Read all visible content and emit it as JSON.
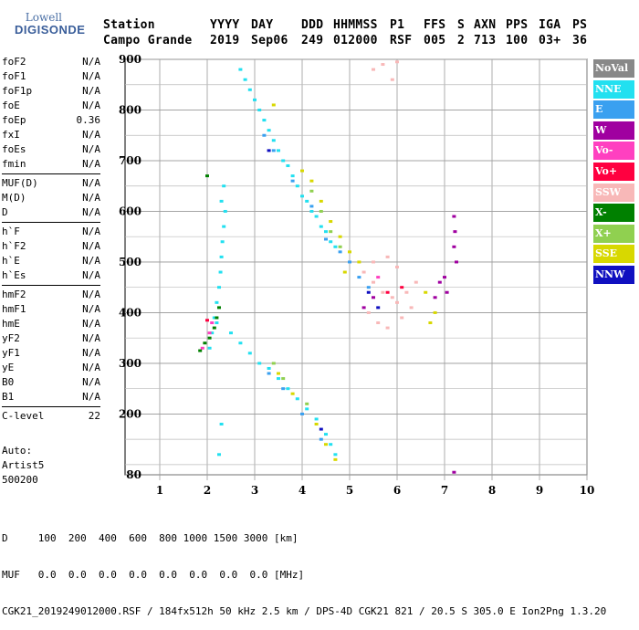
{
  "logo": {
    "line1": "Lowell",
    "line2": "DIGISONDE"
  },
  "header": {
    "row1": [
      {
        "key": "station_label",
        "text": "Station"
      },
      {
        "key": "yyyy_label",
        "text": "YYYY"
      },
      {
        "key": "day_label",
        "text": "DAY"
      },
      {
        "key": "ddd_label",
        "text": "DDD"
      },
      {
        "key": "hhmmss_label",
        "text": "HHMMSS"
      },
      {
        "key": "p1_label",
        "text": "P1"
      },
      {
        "key": "ffs_label",
        "text": "FFS"
      },
      {
        "key": "s_label",
        "text": "S"
      },
      {
        "key": "axn_label",
        "text": "AXN"
      },
      {
        "key": "pps_label",
        "text": "PPS"
      },
      {
        "key": "iga_label",
        "text": "IGA"
      },
      {
        "key": "ps_label",
        "text": "PS"
      }
    ],
    "row2": [
      {
        "key": "station",
        "text": "Campo Grande"
      },
      {
        "key": "yyyy",
        "text": "2019"
      },
      {
        "key": "day",
        "text": "Sep06"
      },
      {
        "key": "ddd",
        "text": "249"
      },
      {
        "key": "hhmmss",
        "text": "012000"
      },
      {
        "key": "p1",
        "text": "RSF"
      },
      {
        "key": "ffs",
        "text": "005"
      },
      {
        "key": "s",
        "text": "2"
      },
      {
        "key": "axn",
        "text": "713"
      },
      {
        "key": "pps",
        "text": "100"
      },
      {
        "key": "iga",
        "text": "03+"
      },
      {
        "key": "ps",
        "text": "36"
      }
    ]
  },
  "params": [
    {
      "group": [
        {
          "name": "foF2",
          "value": "N/A"
        },
        {
          "name": "foF1",
          "value": "N/A"
        },
        {
          "name": "foF1p",
          "value": "N/A"
        },
        {
          "name": "foE",
          "value": "N/A"
        },
        {
          "name": "foEp",
          "value": "0.36"
        },
        {
          "name": "fxI",
          "value": "N/A"
        },
        {
          "name": "foEs",
          "value": "N/A"
        },
        {
          "name": "fmin",
          "value": "N/A"
        }
      ]
    },
    {
      "group": [
        {
          "name": "MUF(D)",
          "value": "N/A"
        },
        {
          "name": "M(D)",
          "value": "N/A"
        },
        {
          "name": "D",
          "value": "N/A"
        }
      ]
    },
    {
      "group": [
        {
          "name": "h`F",
          "value": "N/A"
        },
        {
          "name": "h`F2",
          "value": "N/A"
        },
        {
          "name": "h`E",
          "value": "N/A"
        },
        {
          "name": "h`Es",
          "value": "N/A"
        }
      ]
    },
    {
      "group": [
        {
          "name": "hmF2",
          "value": "N/A"
        },
        {
          "name": "hmF1",
          "value": "N/A"
        },
        {
          "name": "hmE",
          "value": "N/A"
        },
        {
          "name": "yF2",
          "value": "N/A"
        },
        {
          "name": "yF1",
          "value": "N/A"
        },
        {
          "name": "yE",
          "value": "N/A"
        },
        {
          "name": "B0",
          "value": "N/A"
        },
        {
          "name": "B1",
          "value": "N/A"
        }
      ]
    },
    {
      "group": [
        {
          "name": "C-level",
          "value": "22"
        }
      ]
    }
  ],
  "auto": {
    "line1": "Auto:",
    "line2": "Artist5",
    "line3": "500200"
  },
  "legend": [
    {
      "label": "NoVal",
      "color": "#888888"
    },
    {
      "label": "NNE",
      "color": "#22e0f0"
    },
    {
      "label": "E",
      "color": "#3aa0f0"
    },
    {
      "label": "W",
      "color": "#a000a0"
    },
    {
      "label": "Vo-",
      "color": "#ff40c0"
    },
    {
      "label": "Vo+",
      "color": "#ff0040"
    },
    {
      "label": "SSW",
      "color": "#f8b8b8"
    },
    {
      "label": "X-",
      "color": "#008000"
    },
    {
      "label": "X+",
      "color": "#90d050"
    },
    {
      "label": "SSE",
      "color": "#d8d800"
    },
    {
      "label": "NNW",
      "color": "#1010c0"
    }
  ],
  "footer": {
    "d_row": "D     100  200  400  600  800 1000 1500 3000 [km]",
    "muf_row": "MUF   0.0  0.0  0.0  0.0  0.0  0.0  0.0  0.0 [MHz]",
    "info": "CGK21_2019249012000.RSF / 184fx512h 50 kHz 2.5 km / DPS-4D CGK21 821 / 20.5 S 305.0 E Ion2Png 1.3.20"
  },
  "chart_data": {
    "type": "scatter",
    "xlabel": "",
    "ylabel": "",
    "xlim": [
      1,
      10
    ],
    "ylim": [
      80,
      900
    ],
    "x_ticks": [
      1,
      2,
      3,
      4,
      5,
      6,
      7,
      8,
      9,
      10
    ],
    "y_ticks": [
      80,
      200,
      300,
      400,
      500,
      600,
      700,
      800,
      900
    ],
    "grid": true,
    "legend_position": "right",
    "traces": [
      {
        "name": "NNE",
        "color": "#22e0f0",
        "points": [
          [
            2.05,
            330
          ],
          [
            2.1,
            360
          ],
          [
            2.15,
            390
          ],
          [
            2.2,
            420
          ],
          [
            2.25,
            450
          ],
          [
            2.28,
            480
          ],
          [
            2.3,
            510
          ],
          [
            2.32,
            540
          ],
          [
            2.35,
            570
          ],
          [
            2.38,
            600
          ],
          [
            2.7,
            880
          ],
          [
            2.8,
            860
          ],
          [
            2.9,
            840
          ],
          [
            3.0,
            820
          ],
          [
            3.1,
            800
          ],
          [
            3.2,
            780
          ],
          [
            3.3,
            760
          ],
          [
            3.4,
            740
          ],
          [
            3.5,
            720
          ],
          [
            3.6,
            700
          ],
          [
            3.7,
            690
          ],
          [
            3.8,
            670
          ],
          [
            3.9,
            650
          ],
          [
            4.0,
            630
          ],
          [
            4.1,
            620
          ],
          [
            4.2,
            600
          ],
          [
            4.3,
            590
          ],
          [
            4.4,
            570
          ],
          [
            4.5,
            560
          ],
          [
            4.6,
            540
          ],
          [
            4.7,
            530
          ],
          [
            2.2,
            380
          ],
          [
            2.5,
            360
          ],
          [
            2.7,
            340
          ],
          [
            2.9,
            320
          ],
          [
            3.1,
            300
          ],
          [
            3.3,
            290
          ],
          [
            3.5,
            270
          ],
          [
            3.7,
            250
          ],
          [
            3.9,
            230
          ],
          [
            4.1,
            210
          ],
          [
            4.3,
            190
          ],
          [
            4.5,
            160
          ],
          [
            4.6,
            140
          ],
          [
            4.7,
            120
          ],
          [
            2.3,
            620
          ],
          [
            2.35,
            650
          ],
          [
            2.3,
            180
          ],
          [
            2.25,
            120
          ]
        ]
      },
      {
        "name": "E",
        "color": "#3aa0f0",
        "points": [
          [
            3.2,
            750
          ],
          [
            3.4,
            720
          ],
          [
            3.8,
            660
          ],
          [
            4.2,
            610
          ],
          [
            4.5,
            545
          ],
          [
            4.8,
            520
          ],
          [
            5.0,
            500
          ],
          [
            5.2,
            470
          ],
          [
            5.4,
            450
          ],
          [
            3.3,
            280
          ],
          [
            3.6,
            250
          ],
          [
            4.0,
            200
          ],
          [
            4.4,
            150
          ]
        ]
      },
      {
        "name": "W",
        "color": "#a000a0",
        "points": [
          [
            7.2,
            590
          ],
          [
            7.22,
            560
          ],
          [
            7.2,
            530
          ],
          [
            7.25,
            500
          ],
          [
            7.0,
            470
          ],
          [
            7.05,
            440
          ],
          [
            6.9,
            460
          ],
          [
            5.5,
            430
          ],
          [
            5.3,
            410
          ],
          [
            7.2,
            85
          ],
          [
            6.8,
            430
          ]
        ]
      },
      {
        "name": "Vo-",
        "color": "#ff40c0",
        "points": [
          [
            2.1,
            380
          ],
          [
            2.05,
            360
          ],
          [
            1.9,
            330
          ],
          [
            5.6,
            470
          ]
        ]
      },
      {
        "name": "Vo+",
        "color": "#ff0040",
        "points": [
          [
            2.0,
            385
          ],
          [
            5.8,
            440
          ],
          [
            6.1,
            450
          ]
        ]
      },
      {
        "name": "SSW",
        "color": "#f8b8b8",
        "points": [
          [
            5.5,
            880
          ],
          [
            5.7,
            890
          ],
          [
            5.9,
            860
          ],
          [
            6.0,
            895
          ],
          [
            5.3,
            480
          ],
          [
            5.5,
            460
          ],
          [
            5.7,
            440
          ],
          [
            5.9,
            430
          ],
          [
            6.0,
            420
          ],
          [
            6.2,
            440
          ],
          [
            6.4,
            460
          ],
          [
            5.4,
            400
          ],
          [
            5.6,
            380
          ],
          [
            5.8,
            370
          ],
          [
            6.1,
            390
          ],
          [
            6.3,
            410
          ],
          [
            5.5,
            500
          ],
          [
            5.8,
            510
          ],
          [
            6.0,
            490
          ]
        ]
      },
      {
        "name": "X-",
        "color": "#008000",
        "points": [
          [
            1.85,
            325
          ],
          [
            1.95,
            340
          ],
          [
            2.05,
            350
          ],
          [
            2.15,
            370
          ],
          [
            2.2,
            390
          ],
          [
            2.25,
            410
          ],
          [
            2.0,
            670
          ]
        ]
      },
      {
        "name": "X+",
        "color": "#90d050",
        "points": [
          [
            4.2,
            640
          ],
          [
            4.4,
            600
          ],
          [
            4.6,
            560
          ],
          [
            4.8,
            530
          ],
          [
            3.4,
            300
          ],
          [
            3.6,
            270
          ],
          [
            4.1,
            220
          ]
        ]
      },
      {
        "name": "SSE",
        "color": "#d8d800",
        "points": [
          [
            4.0,
            680
          ],
          [
            4.2,
            660
          ],
          [
            4.4,
            620
          ],
          [
            4.6,
            580
          ],
          [
            4.8,
            550
          ],
          [
            5.0,
            520
          ],
          [
            5.2,
            500
          ],
          [
            4.9,
            480
          ],
          [
            3.4,
            810
          ],
          [
            3.5,
            280
          ],
          [
            3.8,
            240
          ],
          [
            4.3,
            180
          ],
          [
            4.5,
            140
          ],
          [
            4.7,
            110
          ],
          [
            6.6,
            440
          ],
          [
            6.8,
            400
          ],
          [
            6.7,
            380
          ]
        ]
      },
      {
        "name": "NNW",
        "color": "#1010c0",
        "points": [
          [
            3.3,
            720
          ],
          [
            4.4,
            170
          ],
          [
            5.6,
            410
          ],
          [
            5.4,
            440
          ]
        ]
      }
    ]
  }
}
